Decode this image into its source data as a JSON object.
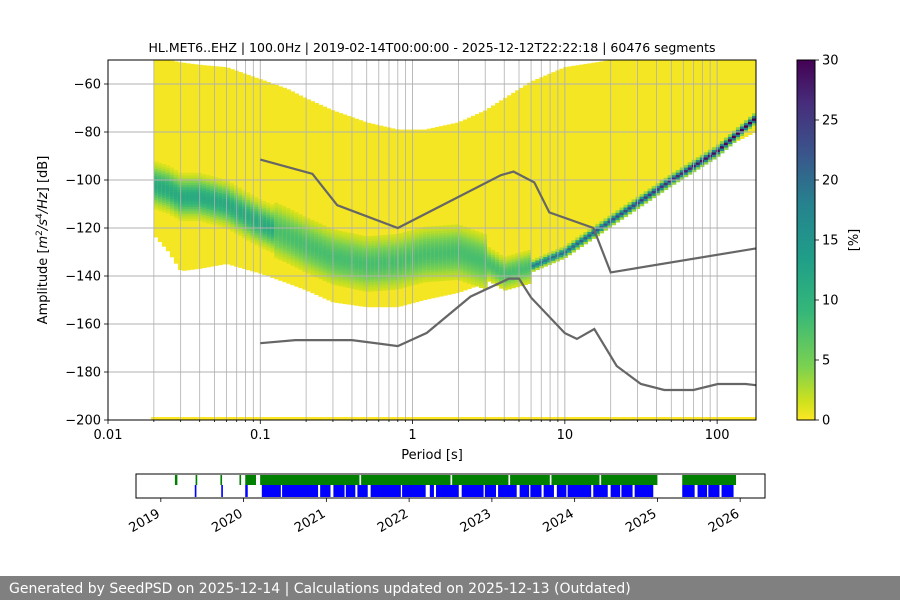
{
  "chart_data": [
    {
      "type": "heatmap",
      "title": "HL.MET6..EHZ | 100.0Hz | 2019-02-14T00:00:00 - 2025-12-12T22:22:18 | 60476 segments",
      "xlabel": "Period [s]",
      "ylabel_parts": [
        "Amplitude [",
        "m",
        "2",
        "/s",
        "4",
        "/Hz",
        "] [dB]"
      ],
      "x_scale": "log",
      "xlim": [
        0.01,
        180
      ],
      "ylim": [
        -200,
        -50
      ],
      "x_ticks": [
        {
          "value": 0.01,
          "label": "0.01"
        },
        {
          "value": 0.1,
          "label": "0.1"
        },
        {
          "value": 1,
          "label": "1"
        },
        {
          "value": 10,
          "label": "10"
        },
        {
          "value": 100,
          "label": "100"
        }
      ],
      "y_ticks": [
        {
          "value": -60,
          "label": "−60"
        },
        {
          "value": -80,
          "label": "−80"
        },
        {
          "value": -100,
          "label": "−100"
        },
        {
          "value": -120,
          "label": "−120"
        },
        {
          "value": -140,
          "label": "−140"
        },
        {
          "value": -160,
          "label": "−160"
        },
        {
          "value": -180,
          "label": "−180"
        },
        {
          "value": -200,
          "label": "−200"
        }
      ],
      "grid": true,
      "colormap": "viridis_r",
      "colorbar": {
        "label": "[%]",
        "range": [
          0,
          30
        ],
        "ticks": [
          {
            "value": 0,
            "label": "0"
          },
          {
            "value": 5,
            "label": "5"
          },
          {
            "value": 10,
            "label": "10"
          },
          {
            "value": 15,
            "label": "15"
          },
          {
            "value": 20,
            "label": "20"
          },
          {
            "value": 25,
            "label": "25"
          },
          {
            "value": 30,
            "label": "30"
          }
        ]
      },
      "psd_extent": [
        {
          "period": 0.02,
          "upper": -50,
          "lower": -123
        },
        {
          "period": 0.025,
          "upper": -50,
          "lower": -130
        },
        {
          "period": 0.03,
          "upper": -51,
          "lower": -138
        },
        {
          "period": 0.04,
          "upper": -52,
          "lower": -137
        },
        {
          "period": 0.06,
          "upper": -53,
          "lower": -135
        },
        {
          "period": 0.1,
          "upper": -58,
          "lower": -139
        },
        {
          "period": 0.15,
          "upper": -62,
          "lower": -143
        },
        {
          "period": 0.2,
          "upper": -66,
          "lower": -146
        },
        {
          "period": 0.3,
          "upper": -71,
          "lower": -151
        },
        {
          "period": 0.5,
          "upper": -76,
          "lower": -153
        },
        {
          "period": 0.8,
          "upper": -79,
          "lower": -153
        },
        {
          "period": 1.2,
          "upper": -79,
          "lower": -150
        },
        {
          "period": 2,
          "upper": -76,
          "lower": -147
        },
        {
          "period": 3,
          "upper": -71,
          "lower": -143
        },
        {
          "period": 4,
          "upper": -66,
          "lower": -140
        },
        {
          "period": 6,
          "upper": -59,
          "lower": -136
        },
        {
          "period": 10,
          "upper": -53,
          "lower": -130
        },
        {
          "period": 20,
          "upper": -50,
          "lower": -117
        },
        {
          "period": 50,
          "upper": -50,
          "lower": -100
        },
        {
          "period": 100,
          "upper": -50,
          "lower": -88
        },
        {
          "period": 180,
          "upper": -50,
          "lower": -80
        }
      ],
      "psd_mode": [
        {
          "period": 0.02,
          "value": -102
        },
        {
          "period": 0.025,
          "value": -104
        },
        {
          "period": 0.03,
          "value": -107
        },
        {
          "period": 0.04,
          "value": -107
        },
        {
          "period": 0.06,
          "value": -110
        },
        {
          "period": 0.1,
          "value": -118
        },
        {
          "period": 0.15,
          "value": -123
        },
        {
          "period": 0.2,
          "value": -127
        },
        {
          "period": 0.3,
          "value": -132
        },
        {
          "period": 0.5,
          "value": -135
        },
        {
          "period": 0.8,
          "value": -134
        },
        {
          "period": 1.2,
          "value": -131
        },
        {
          "period": 2,
          "value": -130
        },
        {
          "period": 3,
          "value": -134
        },
        {
          "period": 4,
          "value": -139
        },
        {
          "period": 6,
          "value": -136
        },
        {
          "period": 10,
          "value": -130
        },
        {
          "period": 20,
          "value": -117
        },
        {
          "period": 50,
          "value": -100
        },
        {
          "period": 100,
          "value": -88
        },
        {
          "period": 180,
          "value": -74
        }
      ],
      "nhnm": [
        {
          "period": 0.1,
          "value": -91.5
        },
        {
          "period": 0.22,
          "value": -97.4
        },
        {
          "period": 0.32,
          "value": -110.5
        },
        {
          "period": 0.8,
          "value": -120
        },
        {
          "period": 3.8,
          "value": -98
        },
        {
          "period": 4.6,
          "value": -96.5
        },
        {
          "period": 6.3,
          "value": -101
        },
        {
          "period": 7.9,
          "value": -113.5
        },
        {
          "period": 15.4,
          "value": -120
        },
        {
          "period": 20,
          "value": -138.5
        },
        {
          "period": 180,
          "value": -128.5
        }
      ],
      "nlnm": [
        {
          "period": 0.1,
          "value": -168
        },
        {
          "period": 0.17,
          "value": -166.7
        },
        {
          "period": 0.4,
          "value": -166.7
        },
        {
          "period": 0.8,
          "value": -169.2
        },
        {
          "period": 1.24,
          "value": -163.7
        },
        {
          "period": 2.4,
          "value": -148.6
        },
        {
          "period": 4.3,
          "value": -141.1
        },
        {
          "period": 5,
          "value": -141.1
        },
        {
          "period": 6,
          "value": -149
        },
        {
          "period": 10,
          "value": -163.8
        },
        {
          "period": 12,
          "value": -166.2
        },
        {
          "period": 15.6,
          "value": -162.1
        },
        {
          "period": 21.9,
          "value": -177.5
        },
        {
          "period": 31.6,
          "value": -185
        },
        {
          "period": 45,
          "value": -187.5
        },
        {
          "period": 70,
          "value": -187.5
        },
        {
          "period": 101,
          "value": -185
        },
        {
          "period": 154,
          "value": -185
        },
        {
          "period": 180,
          "value": -185.5
        }
      ]
    },
    {
      "type": "timeline",
      "x_ticks": [
        "2019",
        "2020",
        "2021",
        "2022",
        "2023",
        "2024",
        "2025",
        "2026"
      ],
      "series": [
        {
          "name": "",
          "color": "#008000"
        },
        {
          "name": "",
          "color": "#0000ff"
        }
      ]
    }
  ],
  "footer": {
    "text": "Generated by SeedPSD on 2025-12-14 | Calculations updated on 2025-12-13 (Outdated)"
  }
}
